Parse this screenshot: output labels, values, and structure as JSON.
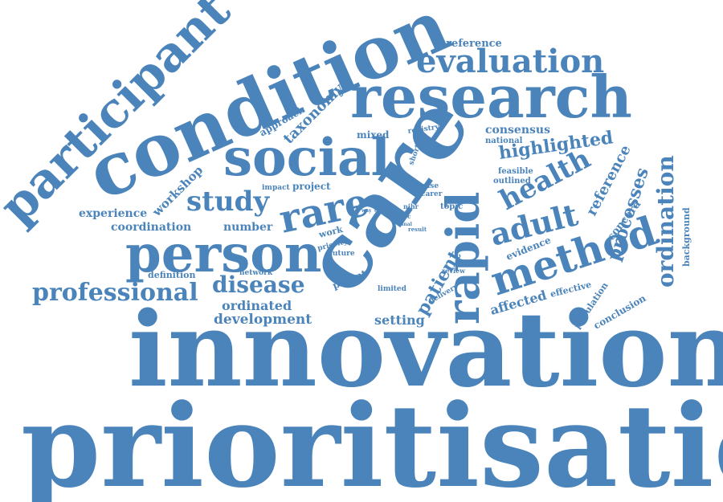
{
  "color": "#4b84ba",
  "words": {
    "prioritisation": "prioritisation",
    "innovation": "innovation",
    "condition": "condition",
    "care": "care",
    "research": "research",
    "participant": "participant",
    "social": "social",
    "person": "person",
    "rapid": "rapid",
    "method": "method",
    "evaluation": "evaluation",
    "rare": "rare",
    "health": "health",
    "adult": "adult",
    "study": "study",
    "professional": "professional",
    "disease": "disease",
    "ordination": "ordination",
    "highlighted": "highlighted",
    "processes": "processes",
    "patient": "patient",
    "taxonomy": "taxonomy",
    "workshop": "workshop",
    "reference": "reference",
    "ordinated": "ordinated",
    "development": "development",
    "coordination": "coordination",
    "experience": "experience",
    "consensus": "consensus",
    "preference": "preference",
    "evidence": "evidence",
    "affected": "affected",
    "setting": "setting",
    "concord": "concord",
    "number": "number",
    "project": "project",
    "approach": "approach",
    "mixed": "mixed",
    "parent": "parent",
    "background": "background",
    "population": "population",
    "conclusion": "conclusion",
    "effective": "effective",
    "definition": "definition",
    "national": "national",
    "registry": "registry",
    "shortlist": "shortlist",
    "feasible": "feasible",
    "outlined": "outlined",
    "impact": "impact",
    "network": "network",
    "work": "work",
    "priority": "priority",
    "future": "future",
    "topic": "topic",
    "delivery": "delivery",
    "limited": "limited",
    "review": "review",
    "case": "case",
    "carer": "carer",
    "nihr": "nihr",
    "lack": "lack",
    "cost": "cost",
    "way": "way",
    "proc": "proc",
    "final": "final",
    "result": "result"
  }
}
